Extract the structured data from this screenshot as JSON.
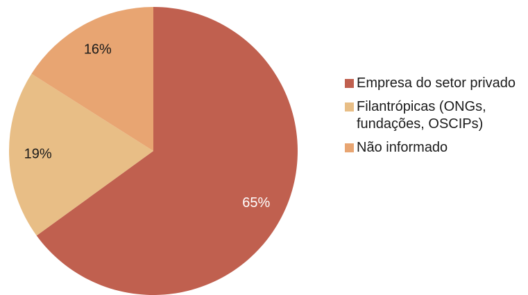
{
  "chart_data": {
    "type": "pie",
    "categories": [
      "Empresa do setor privado",
      "Filantrópicas (ONGs, fundações, OSCIPs)",
      "Não informado"
    ],
    "values": [
      65,
      19,
      16
    ],
    "value_labels": [
      "65%",
      "19%",
      "16%"
    ],
    "colors": [
      "#c0604f",
      "#e8be86",
      "#e8a572"
    ],
    "label_colors": [
      "#ffffff",
      "#1a1a1a",
      "#1a1a1a"
    ],
    "legend": "right"
  }
}
